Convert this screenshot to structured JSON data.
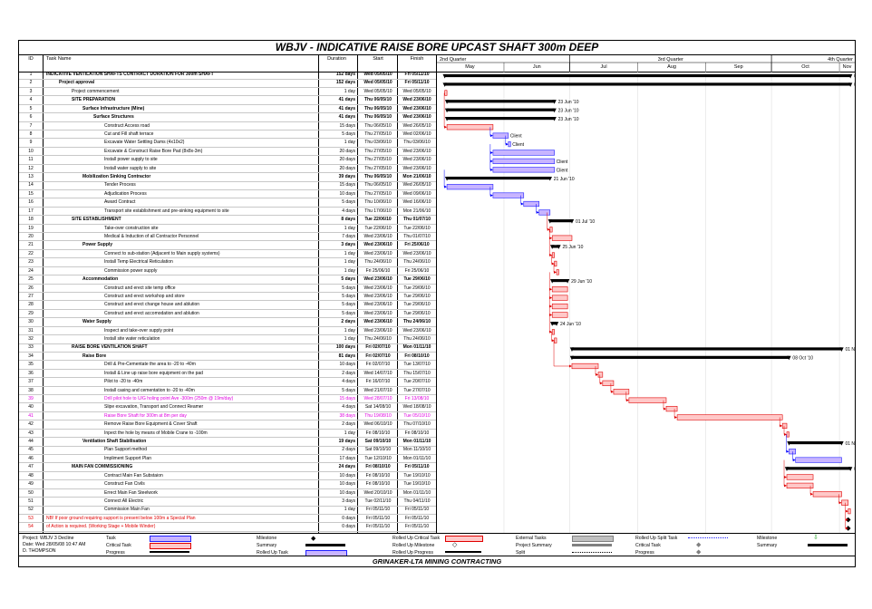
{
  "title": "WBJV - INDICATIVE RAISE BORE UPCAST SHAFT 300m DEEP",
  "footer": "GRINAKER-LTA MINING CONTRACTING",
  "columns": {
    "id": "ID",
    "name": "Task Name",
    "duration": "Duration",
    "start": "Start",
    "finish": "Finish"
  },
  "timescale": {
    "quarters": [
      "2nd Quarter",
      "3rd Quarter",
      "4th Quarter"
    ],
    "months": [
      "May",
      "Jun",
      "Jul",
      "Aug",
      "Sep",
      "Oct",
      "Nov"
    ]
  },
  "project_info": [
    "Project: WBJV 3 Decline",
    "Date: Wed 28/05/08 10:47 AM",
    "D. THOMPSON"
  ],
  "legend": [
    "Task",
    "Critical Task",
    "Progress",
    "Milestone",
    "Summary",
    "Rolled Up Task",
    "Rolled Up Critical Task",
    "Rolled Up Milestone",
    "Rolled Up Progress",
    "External Tasks",
    "Project Summary",
    "Split",
    "Rolled Up Split Task",
    "Critical Task",
    "Progress",
    "Milestone",
    "Summary"
  ],
  "colors": {
    "task": "#c8b4ff",
    "critical": "#ffc8c8",
    "summary": "#000000",
    "highlight": "#e000e0",
    "note": "#e00000",
    "link": "#0000ff"
  },
  "chart_data": {
    "type": "gantt",
    "title": "WBJV - INDICATIVE RAISE BORE UPCAST SHAFT 300m DEEP",
    "x_range": [
      "2010-05-01",
      "2010-11-08"
    ],
    "tasks": [
      {
        "id": "1",
        "name": "INDICATIVE VENTILATION SHAFTS CONTRACT DURATION FOR 300m SHAFT",
        "duration": "152 days",
        "start": "Wed 05/05/10",
        "finish": "Fri 05/11/10",
        "s": "2010-05-05",
        "f": "2010-11-05",
        "kind": "summary",
        "bold": true,
        "label": "05 Nov '10"
      },
      {
        "id": "2",
        "name": "Project approval",
        "duration": "152 days",
        "start": "Wed 05/05/10",
        "finish": "Fri 05/11/10",
        "s": "2010-05-05",
        "f": "2010-11-05",
        "kind": "summary",
        "bold": true,
        "label": "05 Nov '10"
      },
      {
        "id": "3",
        "name": "Project commencement",
        "duration": "1 day",
        "start": "Wed 05/05/10",
        "finish": "Wed 05/05/10",
        "s": "2010-05-05",
        "f": "2010-05-05",
        "kind": "critical"
      },
      {
        "id": "4",
        "name": "SITE PREPARATION",
        "duration": "41 days",
        "start": "Thu 06/05/10",
        "finish": "Wed 23/06/10",
        "s": "2010-05-06",
        "f": "2010-06-23",
        "kind": "summary",
        "bold": true,
        "label": "23 Jun '10"
      },
      {
        "id": "5",
        "name": "Surface Infrastructure (Mine)",
        "duration": "41 days",
        "start": "Thu 06/05/10",
        "finish": "Wed 23/06/10",
        "s": "2010-05-06",
        "f": "2010-06-23",
        "kind": "summary",
        "bold": true,
        "label": "23 Jun '10"
      },
      {
        "id": "6",
        "name": "Surface Structures",
        "duration": "41 days",
        "start": "Thu 06/05/10",
        "finish": "Wed 23/06/10",
        "s": "2010-05-06",
        "f": "2010-06-23",
        "kind": "summary",
        "bold": true,
        "label": "23 Jun '10"
      },
      {
        "id": "7",
        "name": "Construct Access road",
        "duration": "15 days",
        "start": "Thu 06/05/10",
        "finish": "Wed 26/05/10",
        "s": "2010-05-06",
        "f": "2010-05-26",
        "kind": "critical"
      },
      {
        "id": "8",
        "name": "Cut and Fill shaft terrace",
        "duration": "5 days",
        "start": "Thu 27/05/10",
        "finish": "Wed 02/06/10",
        "s": "2010-05-27",
        "f": "2010-06-02",
        "kind": "task",
        "label": "Client"
      },
      {
        "id": "9",
        "name": "Excavate Water Settling Dams (4x10x2)",
        "duration": "1 day",
        "start": "Thu 03/06/10",
        "finish": "Thu 03/06/10",
        "s": "2010-06-03",
        "f": "2010-06-03",
        "kind": "task",
        "label": "Client"
      },
      {
        "id": "10",
        "name": "Excavate & Construct  Raise Bore Pad (8x8x-3m)",
        "duration": "20 days",
        "start": "Thu 27/05/10",
        "finish": "Wed 23/06/10",
        "s": "2010-05-27",
        "f": "2010-06-23",
        "kind": "task"
      },
      {
        "id": "11",
        "name": "Install power supply to site",
        "duration": "20 days",
        "start": "Thu 27/05/10",
        "finish": "Wed 23/06/10",
        "s": "2010-05-27",
        "f": "2010-06-23",
        "kind": "task",
        "label": "Client"
      },
      {
        "id": "12",
        "name": "Install water supply to site",
        "duration": "20 days",
        "start": "Thu 27/05/10",
        "finish": "Wed 23/06/10",
        "s": "2010-05-27",
        "f": "2010-06-23",
        "kind": "task",
        "label": "Client"
      },
      {
        "id": "13",
        "name": "Mobilization Sinking Contractor",
        "duration": "39 days",
        "start": "Thu 06/05/10",
        "finish": "Mon 21/06/10",
        "s": "2010-05-06",
        "f": "2010-06-21",
        "kind": "summary",
        "bold": true,
        "label": "21 Jun '10"
      },
      {
        "id": "14",
        "name": "Tender Process",
        "duration": "15 days",
        "start": "Thu 06/05/10",
        "finish": "Wed 26/05/10",
        "s": "2010-05-06",
        "f": "2010-05-26",
        "kind": "task"
      },
      {
        "id": "15",
        "name": "Adjudication Process",
        "duration": "10 days",
        "start": "Thu 27/05/10",
        "finish": "Wed 09/06/10",
        "s": "2010-05-27",
        "f": "2010-06-09",
        "kind": "task"
      },
      {
        "id": "16",
        "name": "Award Contract",
        "duration": "5 days",
        "start": "Thu 10/06/10",
        "finish": "Wed 16/06/10",
        "s": "2010-06-10",
        "f": "2010-06-16",
        "kind": "task"
      },
      {
        "id": "17",
        "name": "Transport site establishment and pre-sinking  equipment to site",
        "duration": "4 days",
        "start": "Thu 17/06/10",
        "finish": "Mon 21/06/10",
        "s": "2010-06-17",
        "f": "2010-06-21",
        "kind": "task"
      },
      {
        "id": "18",
        "name": "SITE ESTABLISHMENT",
        "duration": "8 days",
        "start": "Tue 22/06/10",
        "finish": "Thu 01/07/10",
        "s": "2010-06-22",
        "f": "2010-07-01",
        "kind": "summary",
        "bold": true,
        "label": "01 Jul '10"
      },
      {
        "id": "19",
        "name": "Take-over construction site",
        "duration": "1 day",
        "start": "Tue 22/06/10",
        "finish": "Tue 22/06/10",
        "s": "2010-06-22",
        "f": "2010-06-22",
        "kind": "critical"
      },
      {
        "id": "20",
        "name": "Medical & Induction of all Contractor Personnel",
        "duration": "7 days",
        "start": "Wed 23/06/10",
        "finish": "Thu 01/07/10",
        "s": "2010-06-23",
        "f": "2010-07-01",
        "kind": "critical"
      },
      {
        "id": "21",
        "name": "Power Supply",
        "duration": "3 days",
        "start": "Wed 23/06/10",
        "finish": "Fri 25/06/10",
        "s": "2010-06-23",
        "f": "2010-06-25",
        "kind": "summary",
        "bold": true,
        "label": "25 Jun '10"
      },
      {
        "id": "22",
        "name": "Connect to  sub-station (Adjacent to Main supply systems)",
        "duration": "1 day",
        "start": "Wed 23/06/10",
        "finish": "Wed 23/06/10",
        "s": "2010-06-23",
        "f": "2010-06-23",
        "kind": "critical"
      },
      {
        "id": "23",
        "name": "Install Temp Electrical Reticulation",
        "duration": "1 day",
        "start": "Thu 24/06/10",
        "finish": "Thu 24/06/10",
        "s": "2010-06-24",
        "f": "2010-06-24",
        "kind": "critical"
      },
      {
        "id": "24",
        "name": "Commission power supply",
        "duration": "1 day",
        "start": "Fri 25/06/10",
        "finish": "Fri 25/06/10",
        "s": "2010-06-25",
        "f": "2010-06-25",
        "kind": "critical"
      },
      {
        "id": "25",
        "name": "Accommodation",
        "duration": "5 days",
        "start": "Wed 23/06/10",
        "finish": "Tue 29/06/10",
        "s": "2010-06-23",
        "f": "2010-06-29",
        "kind": "summary",
        "bold": true,
        "label": "29 Jun '10"
      },
      {
        "id": "26",
        "name": "Construct and erect site temp office",
        "duration": "5 days",
        "start": "Wed 23/06/10",
        "finish": "Tue 29/06/10",
        "s": "2010-06-23",
        "f": "2010-06-29",
        "kind": "critical"
      },
      {
        "id": "27",
        "name": "Construct and erect workshop and store",
        "duration": "5 days",
        "start": "Wed 23/06/10",
        "finish": "Tue 29/06/10",
        "s": "2010-06-23",
        "f": "2010-06-29",
        "kind": "critical"
      },
      {
        "id": "28",
        "name": "Construct and erect change house and ablution",
        "duration": "5 days",
        "start": "Wed 23/06/10",
        "finish": "Tue 29/06/10",
        "s": "2010-06-23",
        "f": "2010-06-29",
        "kind": "critical"
      },
      {
        "id": "29",
        "name": "Construct and erect accomodation and ablution",
        "duration": "5 days",
        "start": "Wed 23/06/10",
        "finish": "Tue 29/06/10",
        "s": "2010-06-23",
        "f": "2010-06-29",
        "kind": "critical"
      },
      {
        "id": "30",
        "name": "Water Supply",
        "duration": "2 days",
        "start": "Wed 23/06/10",
        "finish": "Thu 24/06/10",
        "s": "2010-06-23",
        "f": "2010-06-24",
        "kind": "summary",
        "bold": true,
        "label": "24 Jun '10"
      },
      {
        "id": "31",
        "name": "Inspect and take-over supply point",
        "duration": "1 day",
        "start": "Wed 23/06/10",
        "finish": "Wed 23/06/10",
        "s": "2010-06-23",
        "f": "2010-06-23",
        "kind": "critical"
      },
      {
        "id": "32",
        "name": "Install site water reticulation",
        "duration": "1 day",
        "start": "Thu 24/06/10",
        "finish": "Thu 24/06/10",
        "s": "2010-06-24",
        "f": "2010-06-24",
        "kind": "critical"
      },
      {
        "id": "33",
        "name": "RAISE BORE VENTILATION SHAFT",
        "duration": "100 days",
        "start": "Fri 02/07/10",
        "finish": "Mon 01/11/10",
        "s": "2010-07-02",
        "f": "2010-11-01",
        "kind": "summary",
        "bold": true,
        "label": "01 Nov '10"
      },
      {
        "id": "34",
        "name": "Raise Bore",
        "duration": "81 days",
        "start": "Fri 02/07/10",
        "finish": "Fri 08/10/10",
        "s": "2010-07-02",
        "f": "2010-10-08",
        "kind": "summary",
        "bold": true,
        "label": "08 Oct '10"
      },
      {
        "id": "35",
        "name": "Drill & Pre-Cementate the area to -20 to -40m",
        "duration": "10 days",
        "start": "Fri 02/07/10",
        "finish": "Tue 13/07/10",
        "s": "2010-07-02",
        "f": "2010-07-13",
        "kind": "critical"
      },
      {
        "id": "36",
        "name": "Install & Line up raise bore equipment on the pad",
        "duration": "2 days",
        "start": "Wed 14/07/10",
        "finish": "Thu 15/07/10",
        "s": "2010-07-14",
        "f": "2010-07-15",
        "kind": "critical"
      },
      {
        "id": "37",
        "name": "Pilot to -20 to -40m",
        "duration": "4 days",
        "start": "Fri 16/07/10",
        "finish": "Tue 20/07/10",
        "s": "2010-07-16",
        "f": "2010-07-20",
        "kind": "critical"
      },
      {
        "id": "38",
        "name": "Install casing and cementation to -20 to -40m",
        "duration": "5 days",
        "start": "Wed 21/07/10",
        "finish": "Tue 27/07/10",
        "s": "2010-07-21",
        "f": "2010-07-27",
        "kind": "critical"
      },
      {
        "id": "39",
        "name": "Drill pilot hole to U/G holing point Ave -300m (250m @ 19m/day)",
        "duration": "15 days",
        "start": "Wed 28/07/10",
        "finish": "Fri 13/08/10",
        "s": "2010-07-28",
        "f": "2010-08-13",
        "kind": "critical",
        "color": "pink"
      },
      {
        "id": "40",
        "name": "Slipe excavation, Transport and Connect Reamer",
        "duration": "4 days",
        "start": "Sat 14/08/10",
        "finish": "Wed 18/08/10",
        "s": "2010-08-14",
        "f": "2010-08-18",
        "kind": "critical"
      },
      {
        "id": "41",
        "name": "Raise Bore Shaft for 300m at 8m per day",
        "duration": "38 days",
        "start": "Thu 19/08/10",
        "finish": "Tue 05/10/10",
        "s": "2010-08-19",
        "f": "2010-10-05",
        "kind": "critical",
        "color": "pink"
      },
      {
        "id": "42",
        "name": "Remove Raise Bore Equipment & Cover Shaft",
        "duration": "2 days",
        "start": "Wed 06/10/10",
        "finish": "Thu 07/10/10",
        "s": "2010-10-06",
        "f": "2010-10-07",
        "kind": "critical"
      },
      {
        "id": "43",
        "name": "Inpect the hole by means of Mobile Crane to -100m",
        "duration": "1 day",
        "start": "Fri 08/10/10",
        "finish": "Fri 08/10/10",
        "s": "2010-10-08",
        "f": "2010-10-08",
        "kind": "critical"
      },
      {
        "id": "44",
        "name": "Ventilation Shaft Stabilisation",
        "duration": "19 days",
        "start": "Sat 09/10/10",
        "finish": "Mon 01/11/10",
        "s": "2010-10-09",
        "f": "2010-11-01",
        "kind": "summary",
        "bold": true,
        "label": "01 Nov '10"
      },
      {
        "id": "45",
        "name": "Plan Support method",
        "duration": "2 days",
        "start": "Sat 09/10/10",
        "finish": "Mon 11/10/10",
        "s": "2010-10-09",
        "f": "2010-10-11",
        "kind": "task"
      },
      {
        "id": "46",
        "name": "Impliment Support Plan",
        "duration": "17 days",
        "start": "Tue 12/10/10",
        "finish": "Mon 01/11/10",
        "s": "2010-10-12",
        "f": "2010-11-01",
        "kind": "task"
      },
      {
        "id": "47",
        "name": "MAIN FAN COMMISSIONING",
        "duration": "24 days",
        "start": "Fri 08/10/10",
        "finish": "Fri 05/11/10",
        "s": "2010-10-08",
        "f": "2010-11-05",
        "kind": "summary",
        "bold": true,
        "label": "05 Nov '10"
      },
      {
        "id": "48",
        "name": "Contract Main Fan Substaion",
        "duration": "10 days",
        "start": "Fri 08/10/10",
        "finish": "Tue 19/10/10",
        "s": "2010-10-08",
        "f": "2010-10-19",
        "kind": "critical"
      },
      {
        "id": "49",
        "name": "Construct Fan Civils",
        "duration": "10 days",
        "start": "Fri 08/10/10",
        "finish": "Tue 19/10/10",
        "s": "2010-10-08",
        "f": "2010-10-19",
        "kind": "critical"
      },
      {
        "id": "50",
        "name": "Errect Main Fan Steelwork",
        "duration": "10 days",
        "start": "Wed 20/10/10",
        "finish": "Mon 01/11/10",
        "s": "2010-10-20",
        "f": "2010-11-01",
        "kind": "critical"
      },
      {
        "id": "51",
        "name": "Connect All Electric",
        "duration": "3 days",
        "start": "Tue 02/11/10",
        "finish": "Thu 04/11/10",
        "s": "2010-11-02",
        "f": "2010-11-04",
        "kind": "critical"
      },
      {
        "id": "52",
        "name": "Commission Main Fan",
        "duration": "1 day",
        "start": "Fri 05/11/10",
        "finish": "Fri 05/11/10",
        "s": "2010-11-05",
        "f": "2010-11-05",
        "kind": "critical"
      },
      {
        "id": "53",
        "name": "NB! If poor ground requiring support is present below 100m a Special Plan",
        "duration": "0 days",
        "start": "Fri 05/11/10",
        "finish": "Fri 05/11/10",
        "s": "2010-11-05",
        "f": "2010-11-05",
        "kind": "milestone",
        "color": "red"
      },
      {
        "id": "54",
        "name": "of Action is required.  (Working Stage + Mobile Winder)",
        "duration": "0 days",
        "start": "Fri 05/11/10",
        "finish": "Fri 05/11/10",
        "s": "2010-11-05",
        "f": "2010-11-05",
        "kind": "milestone",
        "color": "red"
      }
    ]
  }
}
